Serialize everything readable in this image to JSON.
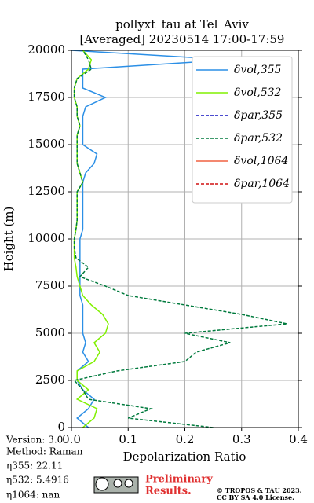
{
  "chart_data": {
    "type": "line",
    "title": "pollyxt_tau at Tel_Aviv",
    "subtitle": "[Averaged] 20230514 17:00-17:59",
    "x_label": "Depolarization Ratio",
    "y_label": "Height (m)",
    "xlim": [
      0,
      0.4
    ],
    "xticks": [
      {
        "value": 0,
        "label": "0.0"
      },
      0.1,
      0.2,
      0.3,
      0.4
    ],
    "ylim": [
      0,
      20000
    ],
    "yticks": [
      0,
      2500,
      5000,
      7500,
      10000,
      12500,
      15000,
      17500,
      20000
    ],
    "grid": true,
    "legend": "upper right",
    "heights": [
      0,
      500,
      1000,
      1500,
      2000,
      2500,
      3000,
      3500,
      4000,
      4500,
      5000,
      5500,
      6000,
      6500,
      7000,
      7500,
      8000,
      8500,
      9000,
      9500,
      10000,
      10500,
      11000,
      11500,
      12000,
      12500,
      13000,
      13500,
      14000,
      14500,
      15000,
      15500,
      16000,
      16500,
      17000,
      17500,
      18000,
      18500,
      19000,
      19500,
      20000
    ],
    "series": [
      {
        "name": "δvol,355",
        "color": "#2b8fe6",
        "dash": false,
        "values": [
          0.03,
          0.01,
          0.03,
          0.04,
          0.02,
          0.01,
          0.01,
          0.03,
          0.02,
          0.025,
          0.02,
          0.02,
          0.02,
          0.02,
          0.015,
          0.015,
          0.015,
          0.015,
          0.015,
          0.015,
          0.015,
          0.02,
          0.02,
          0.02,
          0.02,
          0.02,
          0.02,
          0.025,
          0.04,
          0.045,
          0.02,
          0.02,
          0.02,
          0.02,
          0.025,
          0.06,
          0.02,
          0.02,
          0.02,
          0.28,
          0.0
        ]
      },
      {
        "name": "δvol,532",
        "color": "#80f000",
        "dash": false,
        "values": [
          0.02,
          0.04,
          0.045,
          0.01,
          0.03,
          0.01,
          0.01,
          0.04,
          0.05,
          0.04,
          0.06,
          0.065,
          0.055,
          0.035,
          0.02,
          0.015,
          0.01,
          0.008,
          0.005,
          0.005,
          0.005,
          0.008,
          0.01,
          0.01,
          0.01,
          0.01,
          0.02,
          0.015,
          0.01,
          0.01,
          0.01,
          0.01,
          0.015,
          0.01,
          0.01,
          0.005,
          0.005,
          0.01,
          0.03,
          0.035,
          0.02
        ]
      },
      {
        "name": "δpar,355",
        "color": "#1010c0",
        "dash": true,
        "values": [
          null,
          null,
          null,
          null,
          null,
          null,
          null,
          null,
          null,
          null,
          null,
          null,
          null,
          null,
          null,
          null,
          null,
          null,
          null,
          null,
          null,
          null,
          null,
          null,
          null,
          null,
          null,
          null,
          null,
          null,
          null,
          null,
          null,
          null,
          null,
          null,
          null,
          null,
          null,
          null,
          null
        ]
      },
      {
        "name": "δpar,532",
        "color": "#007a3d",
        "dash": true,
        "values": [
          0.25,
          0.1,
          0.14,
          0.03,
          0.02,
          0.005,
          0.08,
          0.2,
          0.22,
          0.28,
          0.2,
          0.38,
          0.3,
          0.2,
          0.1,
          0.06,
          0.015,
          0.03,
          0.008,
          0.005,
          0.005,
          0.008,
          0.01,
          0.01,
          0.01,
          0.01,
          0.02,
          0.015,
          0.01,
          0.01,
          0.01,
          0.01,
          0.015,
          0.01,
          0.01,
          0.005,
          0.005,
          0.01,
          0.035,
          0.03,
          0.02
        ]
      },
      {
        "name": "δvol,1064",
        "color": "#f06040",
        "dash": false,
        "values": [
          null,
          null,
          null,
          null,
          null,
          null,
          null,
          null,
          null,
          null,
          null,
          null,
          null,
          null,
          null,
          null,
          null,
          null,
          null,
          null,
          null,
          null,
          null,
          null,
          null,
          null,
          null,
          null,
          null,
          null,
          null,
          null,
          null,
          null,
          null,
          null,
          null,
          null,
          null,
          null,
          null
        ]
      },
      {
        "name": "δpar,1064",
        "color": "#d01010",
        "dash": true,
        "values": [
          null,
          null,
          null,
          null,
          null,
          null,
          null,
          null,
          null,
          null,
          null,
          null,
          null,
          null,
          null,
          null,
          null,
          null,
          null,
          null,
          null,
          null,
          null,
          null,
          null,
          null,
          null,
          null,
          null,
          null,
          null,
          null,
          null,
          null,
          null,
          null,
          null,
          null,
          null,
          null,
          null
        ]
      }
    ],
    "info": {
      "version": "Version: 3.0",
      "method": "Method: Raman",
      "eta355": "η355:  22.11",
      "eta532": "η532: 5.4916",
      "eta1064": "η1064:    nan"
    },
    "preliminary": [
      "Preliminary",
      "Results."
    ],
    "copyright": [
      "© TROPOS & TAU 2023.",
      "CC BY SA 4.0 License."
    ]
  }
}
